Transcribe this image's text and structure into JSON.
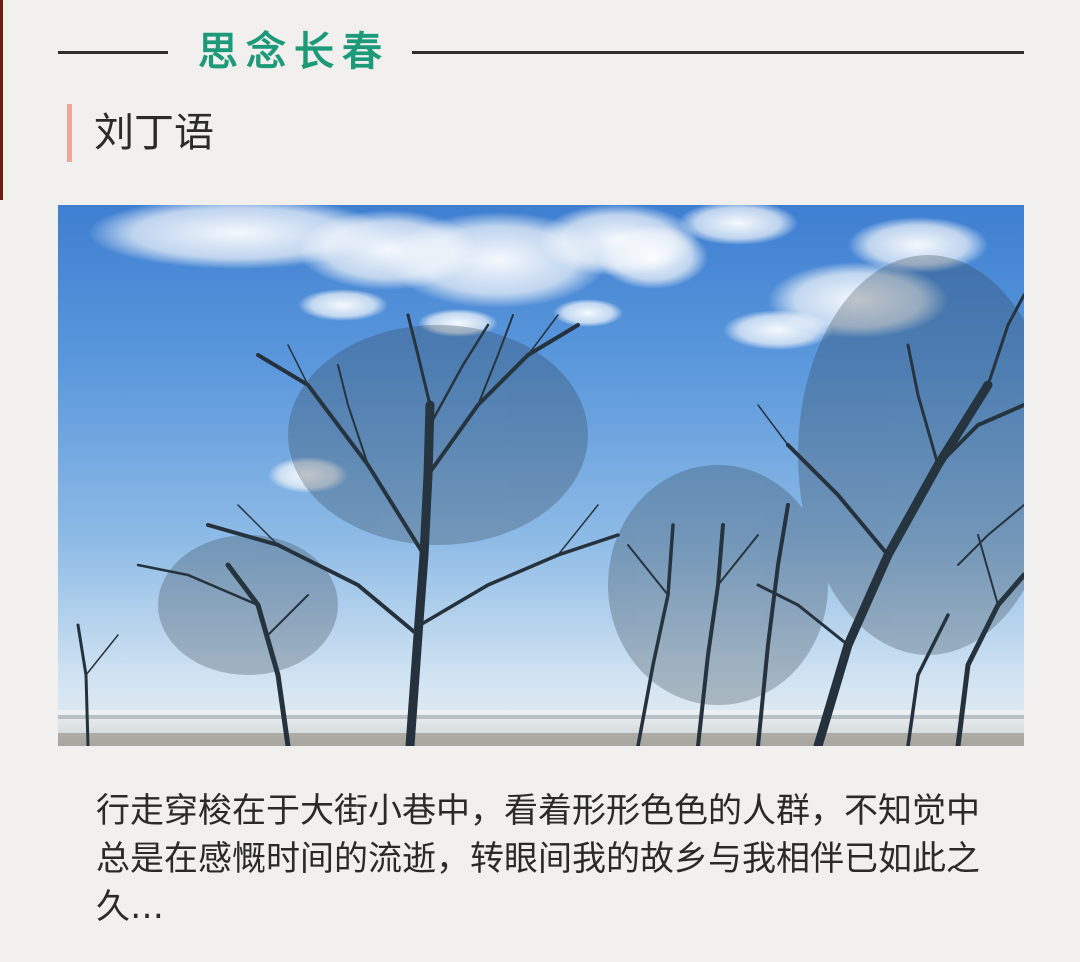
{
  "header": {
    "title": "思念长春"
  },
  "author": {
    "name": "刘丁语"
  },
  "photo": {
    "subject": "bare-trees-under-blue-sky"
  },
  "article": {
    "paragraph": "行走穿梭在于大街小巷中，看着形形色色的人群，不知觉中总是在感慨时间的流逝，转眼间我的故乡与我相伴已如此之久…"
  },
  "colors": {
    "accent": "#1d9a7a",
    "author_bar": "#f0a59b",
    "background": "#f1f0ee",
    "text": "#2a2a2a"
  }
}
